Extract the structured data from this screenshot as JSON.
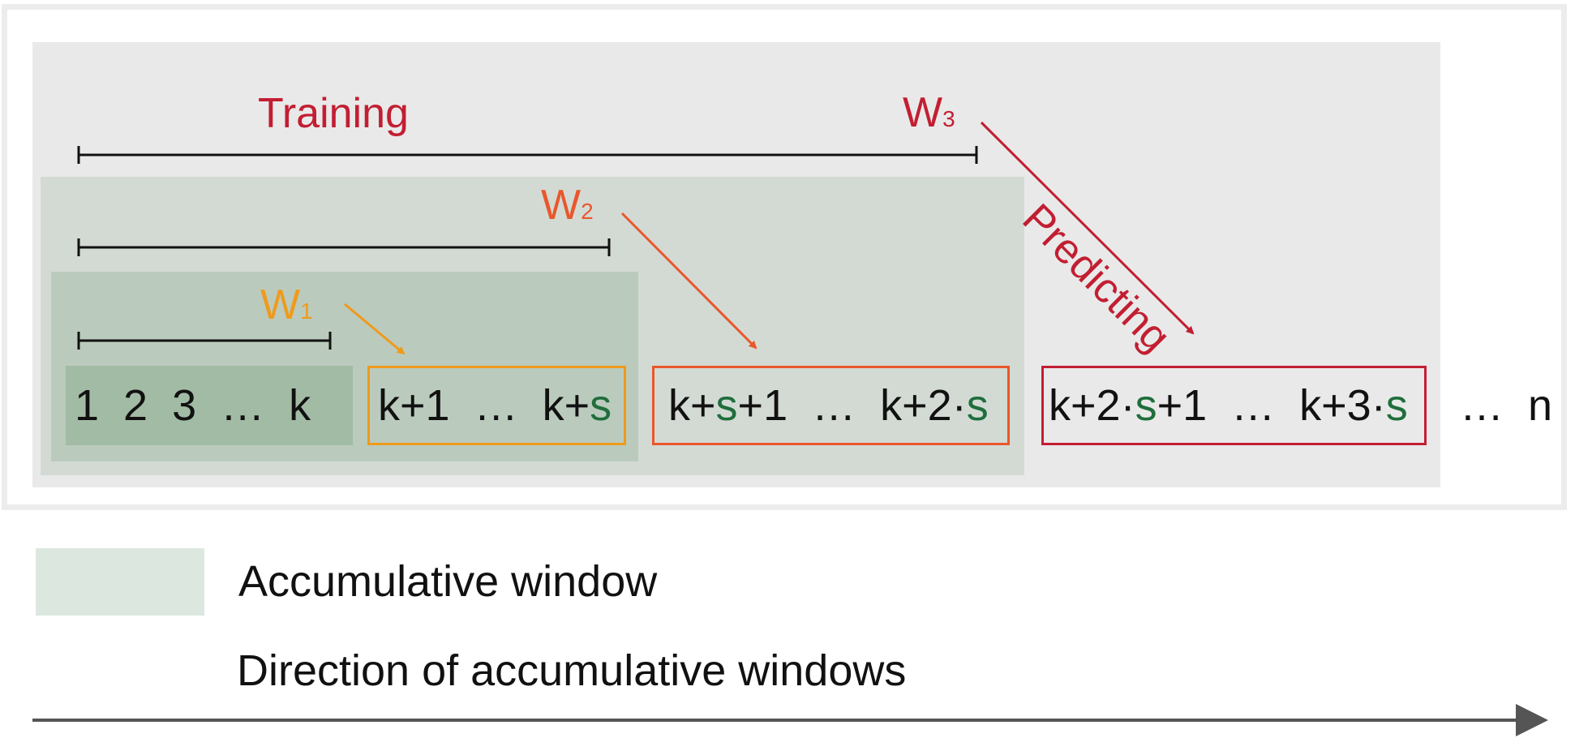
{
  "diagram": {
    "training_label": "Training",
    "predicting_label": "Predicting",
    "windows": [
      {
        "letter": "W",
        "index": "1"
      },
      {
        "letter": "W",
        "index": "2"
      },
      {
        "letter": "W",
        "index": "3"
      }
    ],
    "sequence": {
      "first_block": "1  2  3  …  k",
      "block1": {
        "a": "k+1  …  k+",
        "b": "s"
      },
      "block2": {
        "a": "k+",
        "b": "s",
        "c": "+1  …  k+2·",
        "d": "s"
      },
      "block3": {
        "a": "k+2·",
        "b": "s",
        "c": "+1  …  k+3·",
        "d": "s"
      },
      "tail": "…  n"
    }
  },
  "legend": {
    "accumulative_window": "Accumulative window",
    "direction": "Direction of accumulative windows"
  },
  "colors": {
    "w1": "#ef9a1c",
    "w2": "#e9572b",
    "w3": "#c21e32",
    "step_s": "#1f6e3c"
  }
}
